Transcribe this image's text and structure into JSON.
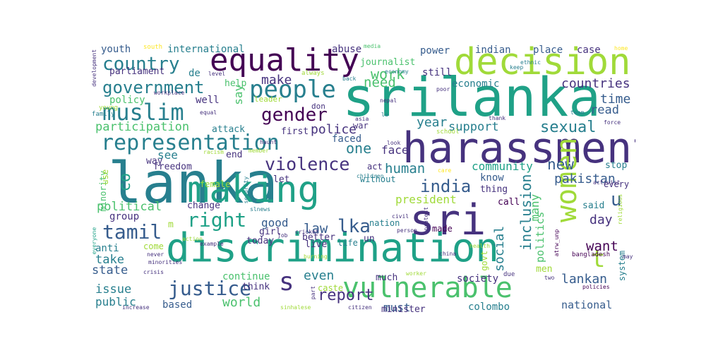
{
  "palette": [
    "#440154",
    "#46327e",
    "#365c8d",
    "#277f8e",
    "#1fa187",
    "#4ac16d",
    "#a0da39",
    "#fde725"
  ],
  "words": [
    {
      "text": "srilanka",
      "color": "#1fa187",
      "weight": 1.0
    },
    {
      "text": "lanka",
      "color": "#277f8e",
      "weight": 0.97
    },
    {
      "text": "harassment",
      "color": "#46327e",
      "weight": 0.9
    },
    {
      "text": "decision",
      "color": "#a0da39",
      "weight": 0.82
    },
    {
      "text": "discrimination",
      "color": "#1fa187",
      "weight": 0.85
    },
    {
      "text": "sri",
      "color": "#46327e",
      "weight": 0.9
    },
    {
      "text": "making",
      "color": "#1fa187",
      "weight": 0.78
    },
    {
      "text": "equality",
      "color": "#440154",
      "weight": 0.7
    },
    {
      "text": "women",
      "color": "#a0da39",
      "weight": 0.55
    },
    {
      "text": "vulnerable",
      "color": "#4ac16d",
      "weight": 0.62
    },
    {
      "text": "people",
      "color": "#277f8e",
      "weight": 0.5
    },
    {
      "text": "muslim",
      "color": "#277f8e",
      "weight": 0.48
    },
    {
      "text": "representation",
      "color": "#277f8e",
      "weight": 0.45
    },
    {
      "text": "country",
      "color": "#277f8e",
      "weight": 0.4
    },
    {
      "text": "government",
      "color": "#277f8e",
      "weight": 0.38
    },
    {
      "text": "right",
      "color": "#1fa187",
      "weight": 0.42
    },
    {
      "text": "tamil",
      "color": "#365c8d",
      "weight": 0.42
    },
    {
      "text": "justice",
      "color": "#365c8d",
      "weight": 0.4
    },
    {
      "text": "gender",
      "color": "#440154",
      "weight": 0.38
    },
    {
      "text": "violence",
      "color": "#46327e",
      "weight": 0.37
    },
    {
      "text": "india",
      "color": "#365c8d",
      "weight": 0.34
    },
    {
      "text": "lka",
      "color": "#365c8d",
      "weight": 0.35
    },
    {
      "text": "s",
      "color": "#46327e",
      "weight": 0.4
    },
    {
      "text": "t",
      "color": "#a0da39",
      "weight": 0.38
    },
    {
      "text": "u",
      "color": "#365c8d",
      "weight": 0.34
    },
    {
      "text": "co",
      "color": "#1fa187",
      "weight": 0.32
    },
    {
      "text": "sexual",
      "color": "#277f8e",
      "weight": 0.3
    },
    {
      "text": "inclusion",
      "color": "#277f8e",
      "weight": 0.3
    },
    {
      "text": "report",
      "color": "#46327e",
      "weight": 0.3
    },
    {
      "text": "countries",
      "color": "#46327e",
      "weight": 0.27
    },
    {
      "text": "work",
      "color": "#4ac16d",
      "weight": 0.28
    },
    {
      "text": "need",
      "color": "#4ac16d",
      "weight": 0.28
    },
    {
      "text": "one",
      "color": "#277f8e",
      "weight": 0.28
    },
    {
      "text": "participation",
      "color": "#4ac16d",
      "weight": 0.25
    },
    {
      "text": "political",
      "color": "#4ac16d",
      "weight": 0.25
    },
    {
      "text": "social",
      "color": "#277f8e",
      "weight": 0.27
    },
    {
      "text": "human",
      "color": "#277f8e",
      "weight": 0.26
    },
    {
      "text": "new",
      "color": "#365c8d",
      "weight": 0.27
    },
    {
      "text": "world",
      "color": "#4ac16d",
      "weight": 0.26
    },
    {
      "text": "even",
      "color": "#277f8e",
      "weight": 0.26
    },
    {
      "text": "make",
      "color": "#46327e",
      "weight": 0.24
    },
    {
      "text": "say",
      "color": "#4ac16d",
      "weight": 0.24
    },
    {
      "text": "police",
      "color": "#46327e",
      "weight": 0.24
    },
    {
      "text": "year",
      "color": "#277f8e",
      "weight": 0.24
    },
    {
      "text": "support",
      "color": "#277f8e",
      "weight": 0.22
    },
    {
      "text": "time",
      "color": "#365c8d",
      "weight": 0.23
    },
    {
      "text": "read",
      "color": "#365c8d",
      "weight": 0.22
    },
    {
      "text": "community",
      "color": "#1fa187",
      "weight": 0.22
    },
    {
      "text": "pakistan",
      "color": "#365c8d",
      "weight": 0.24
    },
    {
      "text": "president",
      "color": "#a0da39",
      "weight": 0.22
    },
    {
      "text": "state",
      "color": "#365c8d",
      "weight": 0.22
    },
    {
      "text": "issue",
      "color": "#277f8e",
      "weight": 0.2
    },
    {
      "text": "law",
      "color": "#365c8d",
      "weight": 0.22
    },
    {
      "text": "want",
      "color": "#440154",
      "weight": 0.22
    },
    {
      "text": "day",
      "color": "#46327e",
      "weight": 0.22
    },
    {
      "text": "lankan",
      "color": "#365c8d",
      "weight": 0.22
    },
    {
      "text": "must",
      "color": "#365c8d",
      "weight": 0.2
    },
    {
      "text": "many",
      "color": "#4ac16d",
      "weight": 0.22
    },
    {
      "text": "politics",
      "color": "#4ac16d",
      "weight": 0.2
    },
    {
      "text": "face",
      "color": "#46327e",
      "weight": 0.2
    },
    {
      "text": "faced",
      "color": "#365c8d",
      "weight": 0.18
    },
    {
      "text": "good",
      "color": "#365c8d",
      "weight": 0.2
    },
    {
      "text": "take",
      "color": "#277f8e",
      "weight": 0.2
    },
    {
      "text": "public",
      "color": "#277f8e",
      "weight": 0.18
    },
    {
      "text": "national",
      "color": "#365c8d",
      "weight": 0.17
    },
    {
      "text": "colombo",
      "color": "#277f8e",
      "weight": 0.15
    },
    {
      "text": "economic",
      "color": "#277f8e",
      "weight": 0.17
    },
    {
      "text": "international",
      "color": "#277f8e",
      "weight": 0.16
    },
    {
      "text": "youth",
      "color": "#365c8d",
      "weight": 0.16
    },
    {
      "text": "parliament",
      "color": "#46327e",
      "weight": 0.15
    },
    {
      "text": "power",
      "color": "#365c8d",
      "weight": 0.16
    },
    {
      "text": "indian",
      "color": "#365c8d",
      "weight": 0.15
    },
    {
      "text": "place",
      "color": "#365c8d",
      "weight": 0.15
    },
    {
      "text": "case",
      "color": "#46327e",
      "weight": 0.15
    },
    {
      "text": "abuse",
      "color": "#46327e",
      "weight": 0.15
    },
    {
      "text": "journalist",
      "color": "#4ac16d",
      "weight": 0.14
    },
    {
      "text": "still",
      "color": "#46327e",
      "weight": 0.15
    },
    {
      "text": "policy",
      "color": "#4ac16d",
      "weight": 0.15
    },
    {
      "text": "well",
      "color": "#46327e",
      "weight": 0.16
    },
    {
      "text": "help",
      "color": "#4ac16d",
      "weight": 0.14
    },
    {
      "text": "de",
      "color": "#277f8e",
      "weight": 0.16
    },
    {
      "text": "attack",
      "color": "#277f8e",
      "weight": 0.14
    },
    {
      "text": "first",
      "color": "#46327e",
      "weight": 0.14
    },
    {
      "text": "war",
      "color": "#46327e",
      "weight": 0.13
    },
    {
      "text": "see",
      "color": "#277f8e",
      "weight": 0.16
    },
    {
      "text": "end",
      "color": "#46327e",
      "weight": 0.13
    },
    {
      "text": "freedom",
      "color": "#46327e",
      "weight": 0.14
    },
    {
      "text": "way",
      "color": "#46327e",
      "weight": 0.14
    },
    {
      "text": "change",
      "color": "#46327e",
      "weight": 0.14
    },
    {
      "text": "group",
      "color": "#46327e",
      "weight": 0.15
    },
    {
      "text": "anti",
      "color": "#277f8e",
      "weight": 0.15
    },
    {
      "text": "let",
      "color": "#46327e",
      "weight": 0.14
    },
    {
      "text": "act",
      "color": "#46327e",
      "weight": 0.12
    },
    {
      "text": "without",
      "color": "#277f8e",
      "weight": 0.13
    },
    {
      "text": "know",
      "color": "#365c8d",
      "weight": 0.15
    },
    {
      "text": "thing",
      "color": "#46327e",
      "weight": 0.13
    },
    {
      "text": "call",
      "color": "#440154",
      "weight": 0.13
    },
    {
      "text": "better",
      "color": "#46327e",
      "weight": 0.14
    },
    {
      "text": "today",
      "color": "#46327e",
      "weight": 0.14
    },
    {
      "text": "live",
      "color": "#46327e",
      "weight": 0.14
    },
    {
      "text": "life",
      "color": "#277f8e",
      "weight": 0.13
    },
    {
      "text": "made",
      "color": "#440154",
      "weight": 0.13
    },
    {
      "text": "un",
      "color": "#46327e",
      "weight": 0.14
    },
    {
      "text": "girl",
      "color": "#46327e",
      "weight": 0.13
    },
    {
      "text": "nation",
      "color": "#277f8e",
      "weight": 0.12
    },
    {
      "text": "continue",
      "color": "#4ac16d",
      "weight": 0.14
    },
    {
      "text": "think",
      "color": "#46327e",
      "weight": 0.13
    },
    {
      "text": "based",
      "color": "#365c8d",
      "weight": 0.14
    },
    {
      "text": "society",
      "color": "#46327e",
      "weight": 0.14
    },
    {
      "text": "much",
      "color": "#46327e",
      "weight": 0.13
    },
    {
      "text": "caste",
      "color": "#a0da39",
      "weight": 0.12
    },
    {
      "text": "minister",
      "color": "#46327e",
      "weight": 0.12
    },
    {
      "text": "stop",
      "color": "#277f8e",
      "weight": 0.13
    },
    {
      "text": "every",
      "color": "#46327e",
      "weight": 0.12
    },
    {
      "text": "said",
      "color": "#277f8e",
      "weight": 0.13
    },
    {
      "text": "system",
      "color": "#277f8e",
      "weight": 0.12
    },
    {
      "text": "men",
      "color": "#a0da39",
      "weight": 0.13
    },
    {
      "text": "minority",
      "color": "#4ac16d",
      "weight": 0.11
    },
    {
      "text": "use",
      "color": "#a0da39",
      "weight": 0.12
    },
    {
      "text": "female",
      "color": "#a0da39",
      "weight": 0.11
    },
    {
      "text": "come",
      "color": "#a0da39",
      "weight": 0.11
    },
    {
      "text": "govt",
      "color": "#a0da39",
      "weight": 0.11
    },
    {
      "text": "m",
      "color": "#a0da39",
      "weight": 0.12
    },
    {
      "text": "leader",
      "color": "#a0da39",
      "weight": 0.1
    },
    {
      "text": "don",
      "color": "#46327e",
      "weight": 0.1
    },
    {
      "text": "always",
      "color": "#a0da39",
      "weight": 0.09
    },
    {
      "text": "economy",
      "color": "#277f8e",
      "weight": 0.08
    },
    {
      "text": "back",
      "color": "#277f8e",
      "weight": 0.08
    },
    {
      "text": "media",
      "color": "#4ac16d",
      "weight": 0.07
    },
    {
      "text": "south",
      "color": "#fde725",
      "weight": 0.07
    },
    {
      "text": "level",
      "color": "#46327e",
      "weight": 0.07
    },
    {
      "text": "workplace",
      "color": "#46327e",
      "weight": 0.07
    },
    {
      "text": "young",
      "color": "#a0da39",
      "weight": 0.07
    },
    {
      "text": "family",
      "color": "#277f8e",
      "weight": 0.07
    },
    {
      "text": "equal",
      "color": "#46327e",
      "weight": 0.07
    },
    {
      "text": "development",
      "color": "#46327e",
      "weight": 0.07
    },
    {
      "text": "keep",
      "color": "#277f8e",
      "weight": 0.07
    },
    {
      "text": "ethnic",
      "color": "#277f8e",
      "weight": 0.07
    },
    {
      "text": "home",
      "color": "#fde725",
      "weight": 0.07
    },
    {
      "text": "nepal",
      "color": "#46327e",
      "weight": 0.07
    },
    {
      "text": "poor",
      "color": "#46327e",
      "weight": 0.07
    },
    {
      "text": "thank",
      "color": "#46327e",
      "weight": 0.07
    },
    {
      "text": "team",
      "color": "#277f8e",
      "weight": 0.07
    },
    {
      "text": "asia",
      "color": "#46327e",
      "weight": 0.07
    },
    {
      "text": "la",
      "color": "#277f8e",
      "weight": 0.07
    },
    {
      "text": "haunt",
      "color": "#46327e",
      "weight": 0.07
    },
    {
      "text": "look",
      "color": "#46327e",
      "weight": 0.07
    },
    {
      "text": "school",
      "color": "#a0da39",
      "weight": 0.07
    },
    {
      "text": "force",
      "color": "#46327e",
      "weight": 0.07
    },
    {
      "text": "racism",
      "color": "#a0da39",
      "weight": 0.07
    },
    {
      "text": "member",
      "color": "#a0da39",
      "weight": 0.07
    },
    {
      "text": "children",
      "color": "#277f8e",
      "weight": 0.07
    },
    {
      "text": "care",
      "color": "#fde725",
      "weight": 0.07
    },
    {
      "text": "religious",
      "color": "#a0da39",
      "weight": 0.07
    },
    {
      "text": "security",
      "color": "#277f8e",
      "weight": 0.07
    },
    {
      "text": "slnews",
      "color": "#277f8e",
      "weight": 0.07
    },
    {
      "text": "job",
      "color": "#46327e",
      "weight": 0.07
    },
    {
      "text": "cricket",
      "color": "#46327e",
      "weight": 0.07
    },
    {
      "text": "civil",
      "color": "#46327e",
      "weight": 0.07
    },
    {
      "text": "person",
      "color": "#46327e",
      "weight": 0.07
    },
    {
      "text": "protest",
      "color": "#46327e",
      "weight": 0.07
    },
    {
      "text": "china",
      "color": "#46327e",
      "weight": 0.07
    },
    {
      "text": "health",
      "color": "#a0da39",
      "weight": 0.07
    },
    {
      "text": "bangladesh",
      "color": "#440154",
      "weight": 0.07
    },
    {
      "text": "atrw_unp",
      "color": "#440154",
      "weight": 0.07
    },
    {
      "text": "everyone",
      "color": "#1fa187",
      "weight": 0.07
    },
    {
      "text": "action",
      "color": "#a0da39",
      "weight": 0.07
    },
    {
      "text": "example",
      "color": "#46327e",
      "weight": 0.07
    },
    {
      "text": "never",
      "color": "#46327e",
      "weight": 0.07
    },
    {
      "text": "minorities",
      "color": "#46327e",
      "weight": 0.07
    },
    {
      "text": "crisis",
      "color": "#46327e",
      "weight": 0.07
    },
    {
      "text": "burning",
      "color": "#a0da39",
      "weight": 0.07
    },
    {
      "text": "worker",
      "color": "#a0da39",
      "weight": 0.07
    },
    {
      "text": "due",
      "color": "#46327e",
      "weight": 0.07
    },
    {
      "text": "two",
      "color": "#46327e",
      "weight": 0.07
    },
    {
      "text": "may",
      "color": "#46327e",
      "weight": 0.07
    },
    {
      "text": "policies",
      "color": "#440154",
      "weight": 0.07
    },
    {
      "text": "part",
      "color": "#46327e",
      "weight": 0.07
    },
    {
      "text": "increase",
      "color": "#46327e",
      "weight": 0.07
    },
    {
      "text": "sinhalese",
      "color": "#a0da39",
      "weight": 0.07
    },
    {
      "text": "citizen",
      "color": "#46327e",
      "weight": 0.07
    },
    {
      "text": "activist",
      "color": "#46327e",
      "weight": 0.07
    }
  ]
}
